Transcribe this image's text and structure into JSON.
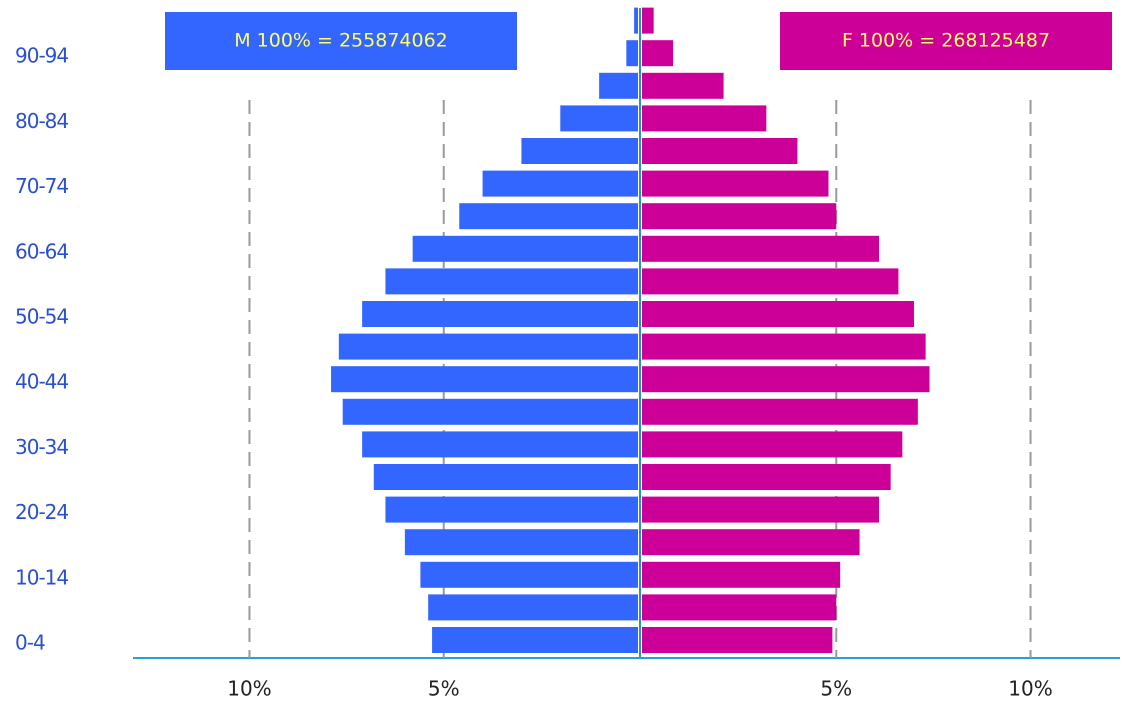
{
  "chart_data": {
    "type": "pyramid",
    "categories": [
      "0-4",
      null,
      "10-14",
      null,
      "20-24",
      null,
      "30-34",
      null,
      "40-44",
      null,
      "50-54",
      null,
      "60-64",
      null,
      "70-74",
      null,
      "80-84",
      null,
      "90-94",
      null
    ],
    "series": [
      {
        "name": "M 100% =  255874062",
        "color": "#3366ff",
        "side": "left",
        "values": [
          5.3,
          5.4,
          5.6,
          6.0,
          6.5,
          6.8,
          7.1,
          7.6,
          7.9,
          7.7,
          7.1,
          6.5,
          5.8,
          4.6,
          4.0,
          3.0,
          2.0,
          1.0,
          0.3,
          0.1
        ]
      },
      {
        "name": "F 100% =  268125487",
        "color": "#cc0099",
        "side": "right",
        "values": [
          4.9,
          5.0,
          5.1,
          5.6,
          6.1,
          6.4,
          6.7,
          7.1,
          7.4,
          7.3,
          7.0,
          6.6,
          6.1,
          5.0,
          4.8,
          4.0,
          3.2,
          2.1,
          0.8,
          0.3
        ]
      }
    ],
    "xlim": [
      -13,
      12.3
    ],
    "xticks": [
      {
        "value": -10,
        "label": "10%"
      },
      {
        "value": -5,
        "label": "5%"
      },
      {
        "value": 5,
        "label": "5%"
      },
      {
        "value": 10,
        "label": "10%"
      }
    ],
    "grid": true
  }
}
